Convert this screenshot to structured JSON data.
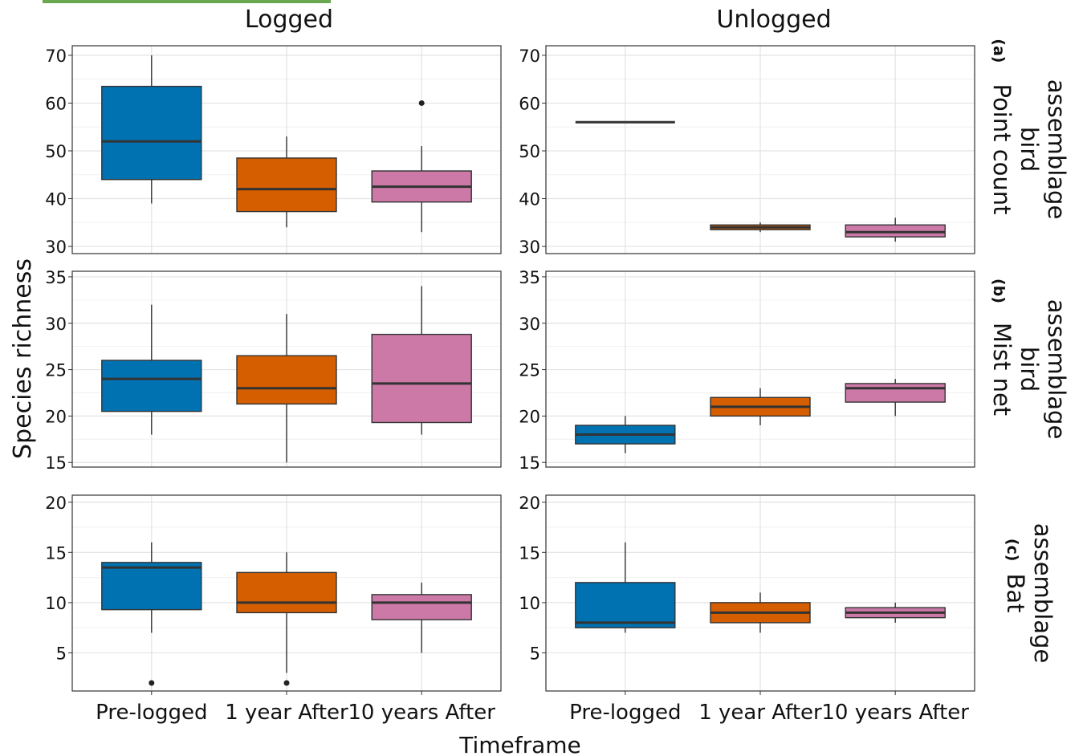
{
  "figure": {
    "y_title": "Species richness",
    "x_title": "Timeframe",
    "column_titles": [
      "Logged",
      "Unlogged"
    ],
    "row_titles": [
      {
        "tag": "(a)",
        "lines": [
          "Point count",
          "bird",
          "assemblage"
        ]
      },
      {
        "tag": "(b)",
        "lines": [
          "Mist net",
          "bird",
          "assemblage"
        ]
      },
      {
        "tag": "(c)",
        "lines": [
          "Bat",
          "assemblage"
        ]
      }
    ],
    "x_tick_labels": [
      "Pre-logged",
      "1 year After",
      "10 years After"
    ]
  },
  "colors": {
    "Pre-logged": "#0072b2",
    "1 year After": "#d55e00",
    "10 years After": "#cc79a7",
    "accent_bar": "#6aa84f"
  },
  "chart_data": [
    {
      "type": "boxplot",
      "row": "(a) Point count bird assemblage",
      "column": "Logged",
      "y_ticks": [
        30,
        40,
        50,
        60,
        70
      ],
      "ylim": [
        28.5,
        72
      ],
      "grid": true,
      "boxes": [
        {
          "category": "Pre-logged",
          "whisker_low": 39,
          "q1": 44,
          "median": 52,
          "q3": 63.5,
          "whisker_high": 70,
          "outliers": []
        },
        {
          "category": "1 year After",
          "whisker_low": 34,
          "q1": 37.3,
          "median": 42,
          "q3": 48.5,
          "whisker_high": 53,
          "outliers": []
        },
        {
          "category": "10 years After",
          "whisker_low": 33,
          "q1": 39.3,
          "median": 42.5,
          "q3": 45.8,
          "whisker_high": 51,
          "outliers": [
            60
          ]
        }
      ]
    },
    {
      "type": "boxplot",
      "row": "(a) Point count bird assemblage",
      "column": "Unlogged",
      "y_ticks": [
        30,
        40,
        50,
        60,
        70
      ],
      "ylim": [
        28.5,
        72
      ],
      "grid": true,
      "boxes": [
        {
          "category": "Pre-logged",
          "whisker_low": 56,
          "q1": 56,
          "median": 56,
          "q3": 56,
          "whisker_high": 56,
          "outliers": []
        },
        {
          "category": "1 year After",
          "whisker_low": 33,
          "q1": 33.5,
          "median": 34,
          "q3": 34.5,
          "whisker_high": 35,
          "outliers": []
        },
        {
          "category": "10 years After",
          "whisker_low": 31,
          "q1": 32,
          "median": 33,
          "q3": 34.5,
          "whisker_high": 36,
          "outliers": []
        }
      ]
    },
    {
      "type": "boxplot",
      "row": "(b) Mist net bird assemblage",
      "column": "Logged",
      "y_ticks": [
        15,
        20,
        25,
        30,
        35
      ],
      "ylim": [
        14.5,
        35.6
      ],
      "grid": true,
      "boxes": [
        {
          "category": "Pre-logged",
          "whisker_low": 18,
          "q1": 20.5,
          "median": 24,
          "q3": 26,
          "whisker_high": 32,
          "outliers": []
        },
        {
          "category": "1 year After",
          "whisker_low": 15,
          "q1": 21.3,
          "median": 23,
          "q3": 26.5,
          "whisker_high": 31,
          "outliers": []
        },
        {
          "category": "10 years After",
          "whisker_low": 18,
          "q1": 19.3,
          "median": 23.5,
          "q3": 28.8,
          "whisker_high": 34,
          "outliers": []
        }
      ]
    },
    {
      "type": "boxplot",
      "row": "(b) Mist net bird assemblage",
      "column": "Unlogged",
      "y_ticks": [
        15,
        20,
        25,
        30,
        35
      ],
      "ylim": [
        14.5,
        35.6
      ],
      "grid": true,
      "boxes": [
        {
          "category": "Pre-logged",
          "whisker_low": 16,
          "q1": 17,
          "median": 18,
          "q3": 19,
          "whisker_high": 20,
          "outliers": []
        },
        {
          "category": "1 year After",
          "whisker_low": 19,
          "q1": 20,
          "median": 21,
          "q3": 22,
          "whisker_high": 23,
          "outliers": []
        },
        {
          "category": "10 years After",
          "whisker_low": 20,
          "q1": 21.5,
          "median": 23,
          "q3": 23.5,
          "whisker_high": 24,
          "outliers": []
        }
      ]
    },
    {
      "type": "boxplot",
      "row": "(c) Bat assemblage",
      "column": "Logged",
      "y_ticks": [
        5,
        10,
        15,
        20
      ],
      "ylim": [
        1.2,
        20.7
      ],
      "grid": true,
      "boxes": [
        {
          "category": "Pre-logged",
          "whisker_low": 7,
          "q1": 9.3,
          "median": 13.5,
          "q3": 14,
          "whisker_high": 16,
          "outliers": [
            2
          ]
        },
        {
          "category": "1 year After",
          "whisker_low": 3,
          "q1": 9,
          "median": 10,
          "q3": 13,
          "whisker_high": 15,
          "outliers": [
            2
          ]
        },
        {
          "category": "10 years After",
          "whisker_low": 5,
          "q1": 8.3,
          "median": 10,
          "q3": 10.8,
          "whisker_high": 12,
          "outliers": []
        }
      ]
    },
    {
      "type": "boxplot",
      "row": "(c) Bat assemblage",
      "column": "Unlogged",
      "y_ticks": [
        5,
        10,
        15,
        20
      ],
      "ylim": [
        1.2,
        20.7
      ],
      "grid": true,
      "boxes": [
        {
          "category": "Pre-logged",
          "whisker_low": 7,
          "q1": 7.5,
          "median": 8,
          "q3": 12,
          "whisker_high": 16,
          "outliers": []
        },
        {
          "category": "1 year After",
          "whisker_low": 7,
          "q1": 8,
          "median": 9,
          "q3": 10,
          "whisker_high": 11,
          "outliers": []
        },
        {
          "category": "10 years After",
          "whisker_low": 8,
          "q1": 8.5,
          "median": 9,
          "q3": 9.5,
          "whisker_high": 10,
          "outliers": []
        }
      ]
    }
  ]
}
